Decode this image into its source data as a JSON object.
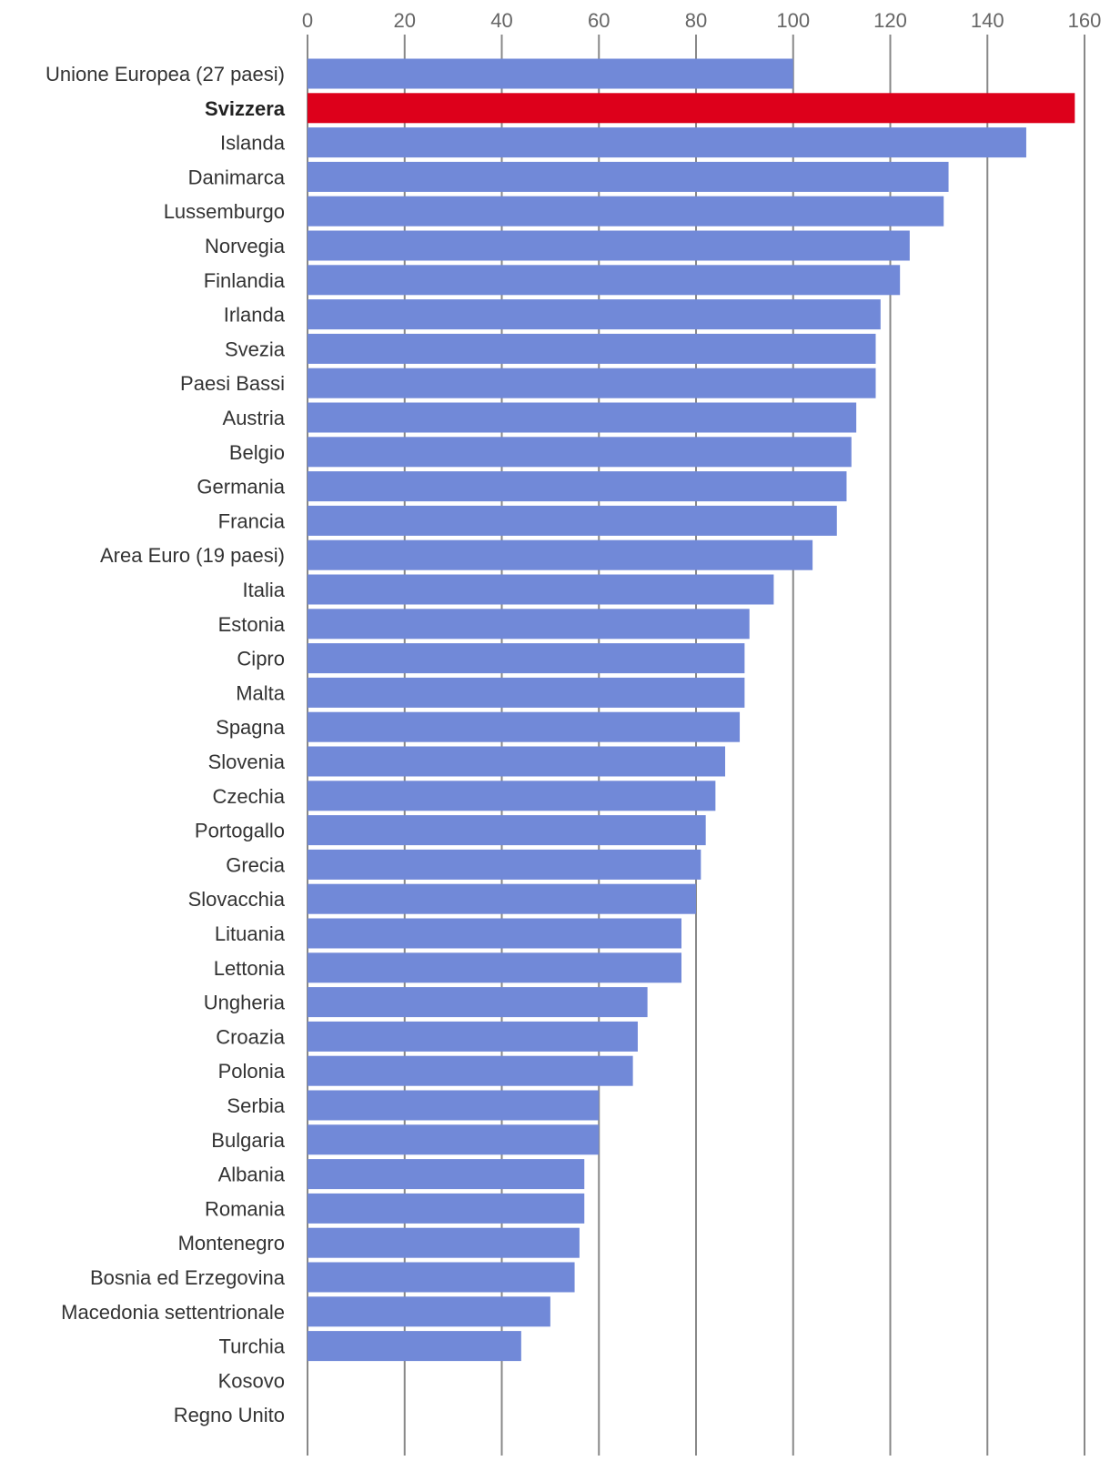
{
  "chart_data": {
    "type": "bar",
    "orientation": "horizontal",
    "title": "",
    "xlabel": "",
    "ylabel": "",
    "xlim": [
      0,
      160
    ],
    "ticks": [
      "0",
      "20",
      "40",
      "60",
      "80",
      "100",
      "120",
      "140",
      "160"
    ],
    "grid": true,
    "legend": "none",
    "colors": {
      "default": "#7189d8",
      "highlight": "#dd001b",
      "grid": "#888888",
      "tick_text": "#666666",
      "label_text": "#333333"
    },
    "highlight_category": "Svizzera",
    "categories": [
      "Unione Europea (27 paesi)",
      "Svizzera",
      "Islanda",
      "Danimarca",
      "Lussemburgo",
      "Norvegia",
      "Finlandia",
      "Irlanda",
      "Svezia",
      "Paesi Bassi",
      "Austria",
      "Belgio",
      "Germania",
      "Francia",
      "Area Euro (19 paesi)",
      "Italia",
      "Estonia",
      "Cipro",
      "Malta",
      "Spagna",
      "Slovenia",
      "Czechia",
      "Portogallo",
      "Grecia",
      "Slovacchia",
      "Lituania",
      "Lettonia",
      "Ungheria",
      "Croazia",
      "Polonia",
      "Serbia",
      "Bulgaria",
      "Albania",
      "Romania",
      "Montenegro",
      "Bosnia ed Erzegovina",
      "Macedonia settentrionale",
      "Turchia",
      "Kosovo",
      "Regno Unito"
    ],
    "values": [
      100,
      158,
      148,
      132,
      131,
      124,
      122,
      118,
      117,
      117,
      113,
      112,
      111,
      109,
      104,
      96,
      91,
      90,
      90,
      89,
      86,
      84,
      82,
      81,
      80,
      77,
      77,
      70,
      68,
      67,
      60,
      60,
      57,
      57,
      56,
      55,
      50,
      44,
      null,
      null
    ]
  }
}
